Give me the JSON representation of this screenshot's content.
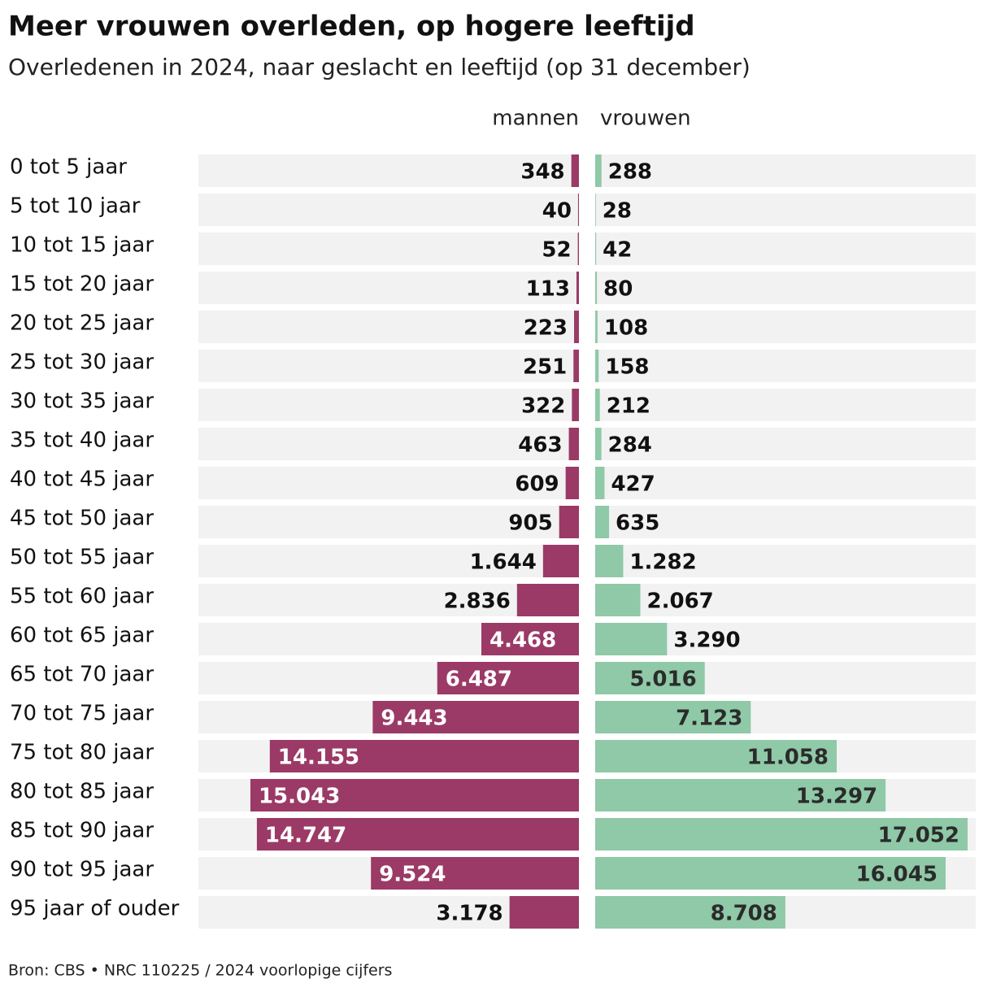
{
  "chart_data": {
    "type": "bar",
    "title": "Meer vrouwen overleden, op hogere leeftijd",
    "subtitle": "Overledenen in 2024, naar geslacht en leeftijd (op 31 december)",
    "source": "Bron: CBS  •  NRC 110225 / 2024 voorlopige cijfers",
    "categories": [
      "0 tot 5 jaar",
      "5 tot 10 jaar",
      "10 tot 15 jaar",
      "15 tot 20 jaar",
      "20 tot 25 jaar",
      "25 tot 30 jaar",
      "30 tot 35 jaar",
      "35 tot 40 jaar",
      "40 tot 45 jaar",
      "45 tot 50 jaar",
      "50 tot 55 jaar",
      "55 tot 60 jaar",
      "60 tot 65 jaar",
      "65 tot 70 jaar",
      "70 tot 75 jaar",
      "75 tot 80 jaar",
      "80 tot 85 jaar",
      "85 tot 90 jaar",
      "90 tot 95 jaar",
      "95 jaar of ouder"
    ],
    "series": [
      {
        "name": "mannen",
        "color": "#9b3a66",
        "values": [
          348,
          40,
          52,
          113,
          223,
          251,
          322,
          463,
          609,
          905,
          1644,
          2836,
          4468,
          6487,
          9443,
          14155,
          15043,
          14747,
          9524,
          3178
        ],
        "value_labels": [
          "348",
          "40",
          "52",
          "113",
          "223",
          "251",
          "322",
          "463",
          "609",
          "905",
          "1.644",
          "2.836",
          "4.468",
          "6.487",
          "9.443",
          "14.155",
          "15.043",
          "14.747",
          "9.524",
          "3.178"
        ]
      },
      {
        "name": "vrouwen",
        "color": "#8fc9a8",
        "values": [
          288,
          28,
          42,
          80,
          108,
          158,
          212,
          284,
          427,
          635,
          1282,
          2067,
          3290,
          5016,
          7123,
          11058,
          13297,
          17052,
          16045,
          8708
        ],
        "value_labels": [
          "288",
          "28",
          "42",
          "80",
          "108",
          "158",
          "212",
          "284",
          "427",
          "635",
          "1.282",
          "2.067",
          "3.290",
          "5.016",
          "7.123",
          "11.058",
          "13.297",
          "17.052",
          "16.045",
          "8.708"
        ]
      }
    ]
  }
}
